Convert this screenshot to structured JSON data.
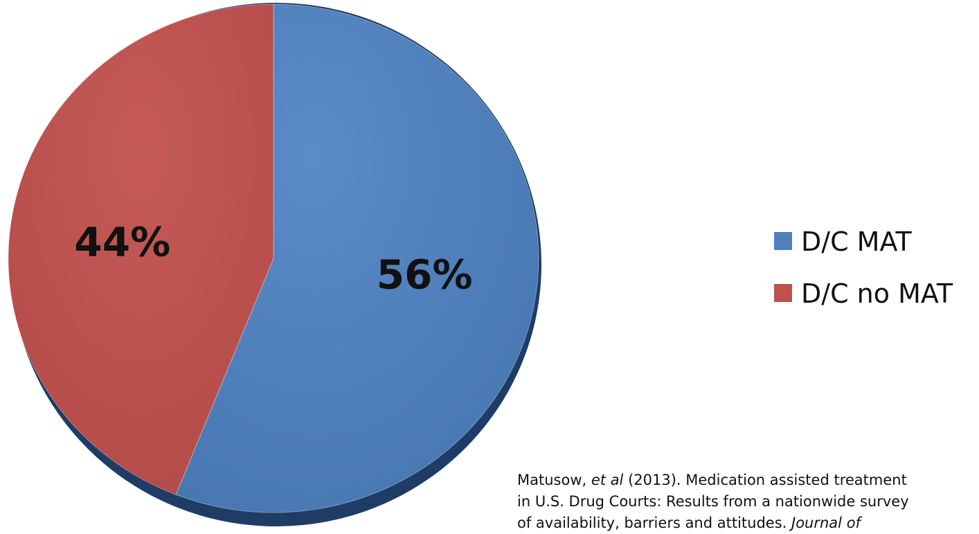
{
  "chart_data": {
    "type": "pie",
    "categories": [
      "D/C MAT",
      "D/C no MAT"
    ],
    "values": [
      56,
      44
    ],
    "data_labels": [
      "56%",
      "44%"
    ],
    "colors": [
      "#4F81BD",
      "#C0504D"
    ],
    "legend_position": "right",
    "start_angle": "12 o'clock, clockwise",
    "style": "3d-shaded"
  },
  "citation": {
    "author": "Matusow, ",
    "et_al": "et al",
    "line1_rest": " (2013).   Medication assisted treatment",
    "line2": "in U.S. Drug Courts: Results from a nationwide survey",
    "line3_start": "of availability, barriers and attitudes.  ",
    "line3_journal": "Journal of"
  }
}
